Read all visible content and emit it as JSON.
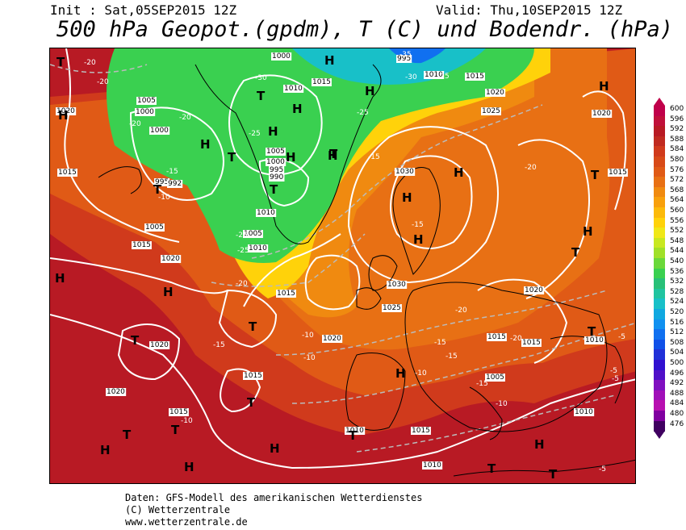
{
  "header": {
    "init": "Init : Sat,05SEP2015 12Z",
    "valid": "Valid: Thu,10SEP2015 12Z",
    "title": "500 hPa Geopot.(gpdm), T (C) und Bodendr. (hPa)"
  },
  "colorbar": {
    "labels": [
      "600",
      "596",
      "592",
      "588",
      "584",
      "580",
      "576",
      "572",
      "568",
      "564",
      "560",
      "556",
      "552",
      "548",
      "544",
      "540",
      "536",
      "532",
      "528",
      "524",
      "520",
      "516",
      "512",
      "508",
      "504",
      "500",
      "496",
      "492",
      "488",
      "484",
      "480",
      "476"
    ],
    "colors": [
      "#c0004a",
      "#c0103a",
      "#b81a24",
      "#c02a20",
      "#d03a1c",
      "#d84a18",
      "#e05a16",
      "#e87014",
      "#f08a10",
      "#f8a00c",
      "#fcba0a",
      "#ffd20a",
      "#f0e818",
      "#c8e820",
      "#a0e028",
      "#6ad83a",
      "#3ad050",
      "#28c078",
      "#20c4a0",
      "#18c0c8",
      "#10a8e0",
      "#1090f0",
      "#1070f0",
      "#1050e8",
      "#2030d8",
      "#3010d0",
      "#5010c8",
      "#8010c0",
      "#a010b8",
      "#b810b0",
      "#8000a0",
      "#400060"
    ]
  },
  "map": {
    "pressure_labels": [
      "1000",
      "995",
      "1010",
      "1015",
      "1005",
      "1000",
      "1000",
      "1020",
      "1015",
      "995",
      "992",
      "1005",
      "1015",
      "1020",
      "1010",
      "1005",
      "1000",
      "995",
      "990",
      "1005",
      "1010",
      "1015",
      "1020",
      "1025",
      "1030",
      "1030",
      "1025",
      "1020",
      "1020",
      "1020",
      "1015",
      "1015",
      "1015",
      "1010",
      "1015",
      "1010",
      "1010",
      "1010",
      "1015",
      "1020",
      "1020",
      "1015",
      "1005",
      "1015",
      "1010"
    ],
    "temp_labels": [
      "-20",
      "-20",
      "-30",
      "-35",
      "-30",
      "-25",
      "-25",
      "-20",
      "-20",
      "-25",
      "-15",
      "-10",
      "-25",
      "-20",
      "-25",
      "-15",
      "-20",
      "-15",
      "-10",
      "-10",
      "-15",
      "-15",
      "-15",
      "-20",
      "-20",
      "-10",
      "-15",
      "-10",
      "-10",
      "-5",
      "-5",
      "-5",
      "-5"
    ],
    "high_symbol": "H",
    "low_symbol": "T"
  },
  "footer": {
    "line1": "Daten: GFS-Modell des amerikanischen Wetterdienstes",
    "line2": "(C) Wetterzentrale",
    "line3": "www.wetterzentrale.de"
  }
}
